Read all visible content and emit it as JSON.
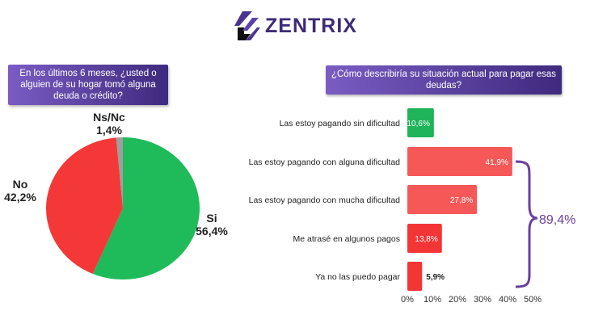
{
  "brand": {
    "name": "ZENTRIX",
    "color": "#3d2a78"
  },
  "chart_data": [
    {
      "type": "pie",
      "title": "En los últimos 6 meses, ¿usted o alguien de su hogar tomó alguna deuda o crédito?",
      "slices": [
        {
          "label": "Si",
          "value": 56.4,
          "value_label": "56,4%",
          "color": "#1fba5a"
        },
        {
          "label": "No",
          "value": 42.2,
          "value_label": "42,2%",
          "color": "#f43838"
        },
        {
          "label": "Ns/Nc",
          "value": 1.4,
          "value_label": "1,4%",
          "color": "#9e9e9e"
        }
      ]
    },
    {
      "type": "bar",
      "orientation": "horizontal",
      "title": "¿Cómo describiría su situación actual para pagar esas deudas?",
      "categories": [
        "Las estoy pagando sin dificultad",
        "Las estoy pagando con alguna dificultad",
        "Las estoy pagando con mucha dificultad",
        "Me atrasé en algunos pagos",
        "Ya no las puedo pagar"
      ],
      "values": [
        10.6,
        41.9,
        27.8,
        13.8,
        5.9
      ],
      "value_labels": [
        "10,6%",
        "41,9%",
        "27,8%",
        "13,8%",
        "5,9%"
      ],
      "colors": [
        "#1fb35a",
        "#f65858",
        "#f65858",
        "#f33535",
        "#f33535"
      ],
      "xlim": [
        0,
        50
      ],
      "ticks": [
        "0%",
        "10%",
        "20%",
        "30%",
        "40%",
        "50%"
      ],
      "annotation": {
        "text": "89,4%",
        "color": "#6b3fa0"
      }
    }
  ]
}
